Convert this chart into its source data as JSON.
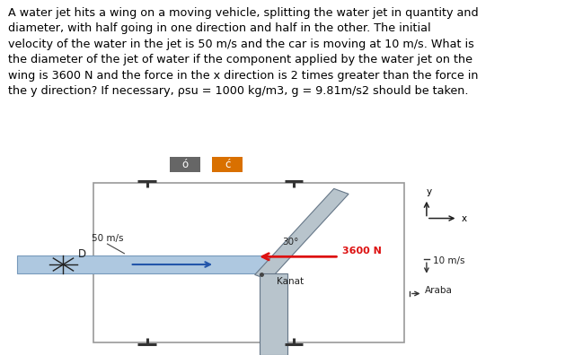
{
  "text_block": "A water jet hits a wing on a moving vehicle, splitting the water jet in quantity and\ndiameter, with half going in one direction and half in the other. The initial\nvelocity of the water in the jet is 50 m/s and the car is moving at 10 m/s. What is\nthe diameter of the jet of water if the component applied by the water jet on the\nwing is 3600 N and the force in the x direction is 2 times greater than the force in\nthe y direction? If necessary, ρsu = 1000 kg/m3, g = 9.81m/s2 should be taken.",
  "bg_color": "#ffffff",
  "jet_color": "#aec8e0",
  "wing_color": "#b8c4cc",
  "arrow_color": "#dd1111",
  "undo_btn_color": "#666666",
  "redo_btn_color": "#d97000",
  "label_50ms": "50 m/s",
  "label_3600N": "3600 N",
  "label_kanat": "Kanat",
  "label_10ms": "10 m/s",
  "label_araba": "Araba",
  "label_30deg": "30°",
  "label_D": "D",
  "font_size_text": 9.2,
  "font_size_labels": 7.5
}
